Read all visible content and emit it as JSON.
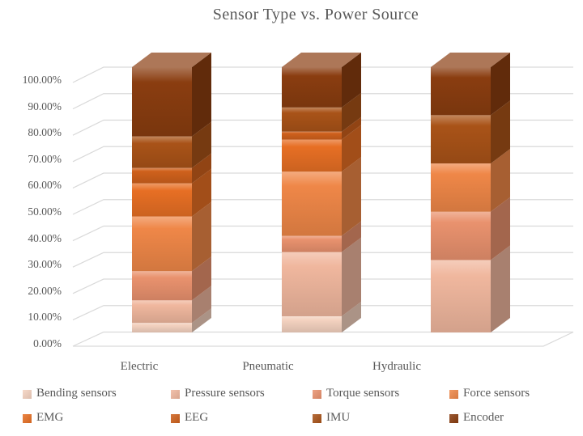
{
  "chart_data": {
    "type": "bar",
    "variant": "3d-stacked-column-100pct",
    "title": "Sensor Type vs. Power Source",
    "categories": [
      "Electric",
      "Pneumatic",
      "Hydraulic"
    ],
    "series": [
      {
        "name": "Bending sensors",
        "color": "#F4D2C0",
        "values": [
          3.6,
          6.1,
          0
        ]
      },
      {
        "name": "Pressure sensors",
        "color": "#F0B79E",
        "values": [
          8.5,
          24.2,
          27.3
        ]
      },
      {
        "name": "Torque sensors",
        "color": "#E9926E",
        "values": [
          11.0,
          6.1,
          18.2
        ]
      },
      {
        "name": "Force sensors",
        "color": "#EF8748",
        "values": [
          20.6,
          24.2,
          18.2
        ]
      },
      {
        "name": "EMG",
        "color": "#E76F24",
        "values": [
          12.5,
          12.1,
          0
        ]
      },
      {
        "name": "EEG",
        "color": "#CF611C",
        "values": [
          5.8,
          3.0,
          0
        ]
      },
      {
        "name": "IMU",
        "color": "#A95318",
        "values": [
          11.9,
          9.1,
          18.2
        ]
      },
      {
        "name": "Encoder",
        "color": "#8A3D10",
        "values": [
          26.1,
          15.2,
          18.1
        ]
      }
    ],
    "yticks": [
      "0.00%",
      "10.00%",
      "20.00%",
      "30.00%",
      "40.00%",
      "50.00%",
      "60.00%",
      "70.00%",
      "80.00%",
      "90.00%",
      "100.00%"
    ],
    "ylim": [
      0,
      100
    ],
    "grid": true,
    "gridline_color": "#D9D9D9",
    "text_color": "#595959",
    "legend_position": "bottom"
  }
}
